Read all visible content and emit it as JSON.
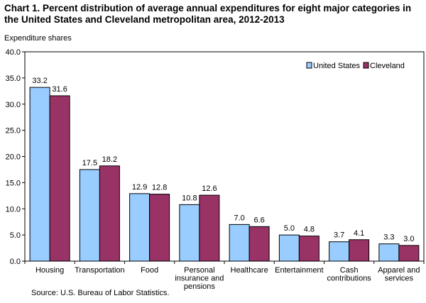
{
  "chart_data": {
    "type": "bar",
    "title": "Chart 1. Percent distribution  of average annual expenditures for eight major categories in the United States and Cleveland metropolitan area, 2012-2013",
    "ylabel": "Expenditure shares",
    "xlabel": "",
    "ylim": [
      0,
      40
    ],
    "yticks": [
      "0.0",
      "5.0",
      "10.0",
      "15.0",
      "20.0",
      "25.0",
      "30.0",
      "35.0",
      "40.0"
    ],
    "grid": false,
    "legend_position": "top-right",
    "categories": [
      [
        "Housing"
      ],
      [
        "Transportation"
      ],
      [
        "Food"
      ],
      [
        "Personal",
        "insurance and",
        "pensions"
      ],
      [
        "Healthcare"
      ],
      [
        "Entertainment"
      ],
      [
        "Cash",
        "contributions"
      ],
      [
        "Apparel and",
        "services"
      ]
    ],
    "series": [
      {
        "name": "United States",
        "color": "#99CCFF",
        "values": [
          33.2,
          17.5,
          12.9,
          10.8,
          7.0,
          5.0,
          3.7,
          3.3
        ],
        "labels": [
          "33.2",
          "17.5",
          "12.9",
          "10.8",
          "7.0",
          "5.0",
          "3.7",
          "3.3"
        ]
      },
      {
        "name": "Cleveland",
        "color": "#993366",
        "values": [
          31.6,
          18.2,
          12.8,
          12.6,
          6.6,
          4.8,
          4.1,
          3.0
        ],
        "labels": [
          "31.6",
          "18.2",
          "12.8",
          "12.6",
          "6.6",
          "4.8",
          "4.1",
          "3.0"
        ]
      }
    ],
    "source": "Source: U.S. Bureau of Labor Statistics."
  }
}
